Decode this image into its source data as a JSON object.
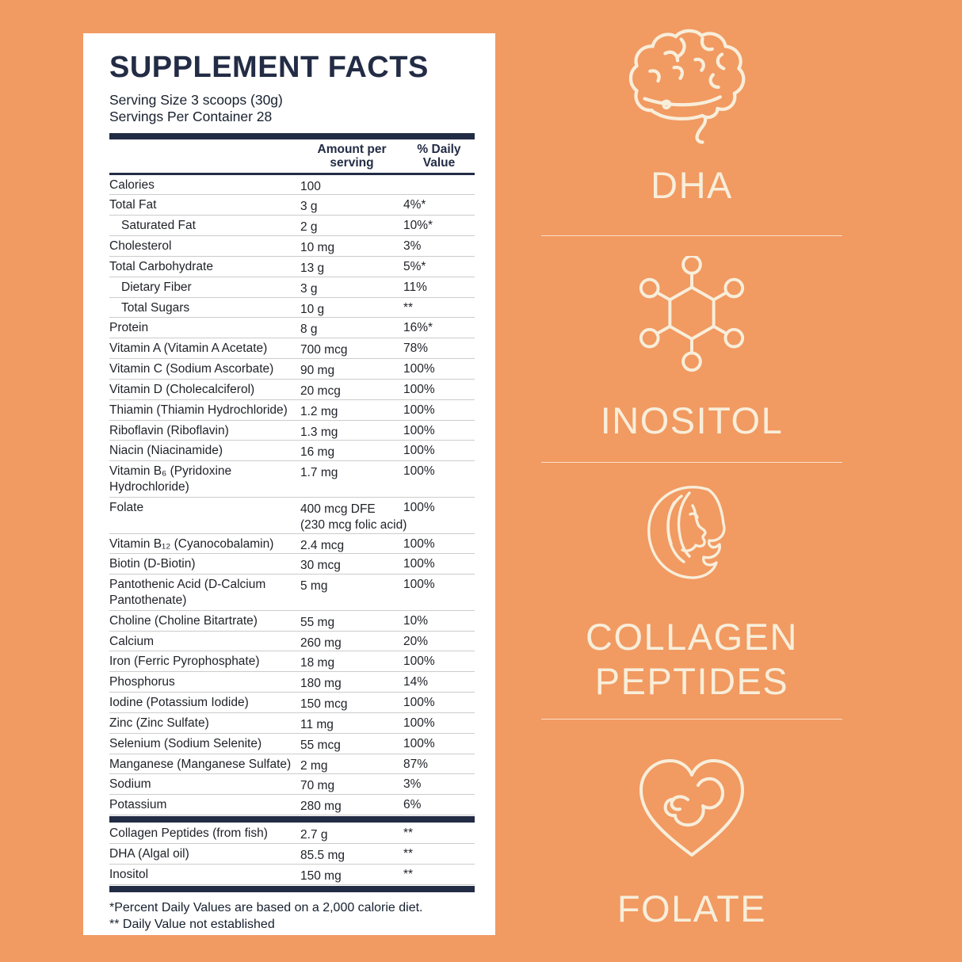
{
  "colors": {
    "background": "#F19A62",
    "panel": "#FFFFFF",
    "navy": "#232C45",
    "text": "#1F2128",
    "cream": "#F8EEDA",
    "separator": "#CCCCCC"
  },
  "panel": {
    "title": "SUPPLEMENT FACTS",
    "serving_size": "Serving Size 3 scoops (30g)",
    "servings_per_container": "Servings Per Container 28",
    "columns": {
      "amount_line1": "Amount per",
      "amount_line2": "serving",
      "dv_line1": "% Daily",
      "dv_line2": "Value"
    },
    "rows": [
      {
        "label": "Calories",
        "amount": "100",
        "dv": ""
      },
      {
        "label": "Total Fat",
        "amount": "3 g",
        "dv": "4%*"
      },
      {
        "label": "Saturated Fat",
        "indent": true,
        "amount": "2 g",
        "dv": "10%*"
      },
      {
        "label": "Cholesterol",
        "amount": "10 mg",
        "dv": "3%"
      },
      {
        "label": "Total Carbohydrate",
        "amount": "13 g",
        "dv": "5%*"
      },
      {
        "label": "Dietary Fiber",
        "indent": true,
        "amount": "3 g",
        "dv": "11%"
      },
      {
        "label": "Total Sugars",
        "indent": true,
        "amount": "10 g",
        "dv": "**"
      },
      {
        "label": "Protein",
        "amount": "8 g",
        "dv": "16%*"
      },
      {
        "label": "Vitamin A (Vitamin A Acetate)",
        "amount": "700 mcg",
        "dv": "78%"
      },
      {
        "label": "Vitamin C (Sodium Ascorbate)",
        "amount": "90 mg",
        "dv": "100%"
      },
      {
        "label": "Vitamin D (Cholecalciferol)",
        "amount": "20 mcg",
        "dv": "100%"
      },
      {
        "label": "Thiamin (Thiamin Hydrochloride)",
        "amount": "1.2 mg",
        "dv": "100%"
      },
      {
        "label": "Riboflavin (Riboflavin)",
        "amount": "1.3 mg",
        "dv": "100%"
      },
      {
        "label": "Niacin (Niacinamide)",
        "amount": "16 mg",
        "dv": "100%"
      },
      {
        "label": "Vitamin B₆ (Pyridoxine",
        "label2": "Hydrochloride)",
        "amount": "1.7 mg",
        "dv": "100%"
      },
      {
        "label": "Folate",
        "amount": "400 mcg DFE",
        "amount2": "(230 mcg folic acid)",
        "dv": "100%"
      },
      {
        "label": "Vitamin B₁₂ (Cyanocobalamin)",
        "amount": "2.4 mcg",
        "dv": "100%"
      },
      {
        "label": "Biotin (D-Biotin)",
        "amount": "30 mcg",
        "dv": "100%"
      },
      {
        "label": "Pantothenic Acid (D-Calcium",
        "label2": "Pantothenate)",
        "amount": "5 mg",
        "dv": "100%"
      },
      {
        "label": "Choline (Choline Bitartrate)",
        "amount": "55 mg",
        "dv": "10%"
      },
      {
        "label": "Calcium",
        "amount": "260 mg",
        "dv": "20%"
      },
      {
        "label": "Iron (Ferric Pyrophosphate)",
        "amount": "18 mg",
        "dv": "100%"
      },
      {
        "label": "Phosphorus",
        "amount": "180 mg",
        "dv": "14%"
      },
      {
        "label": "Iodine (Potassium Iodide)",
        "amount": "150 mcg",
        "dv": "100%"
      },
      {
        "label": "Zinc (Zinc Sulfate)",
        "amount": "11 mg",
        "dv": "100%"
      },
      {
        "label": "Selenium (Sodium Selenite)",
        "amount": "55 mcg",
        "dv": "100%"
      },
      {
        "label": "Manganese (Manganese Sulfate)",
        "amount": "2 mg",
        "dv": "87%"
      },
      {
        "label": "Sodium",
        "amount": "70 mg",
        "dv": "3%"
      },
      {
        "label": "Potassium",
        "amount": "280 mg",
        "dv": "6%"
      }
    ],
    "extra_rows": [
      {
        "label": "Collagen Peptides (from fish)",
        "amount": "2.7 g",
        "dv": "**"
      },
      {
        "label": "DHA (Algal oil)",
        "amount": "85.5 mg",
        "dv": "**"
      },
      {
        "label": "Inositol",
        "amount": "150 mg",
        "dv": "**"
      }
    ],
    "footnotes": [
      "*Percent Daily Values are based on a 2,000 calorie diet.",
      "** Daily Value not established"
    ]
  },
  "highlights": {
    "sections": [
      {
        "label": "DHA",
        "icon": "brain-icon"
      },
      {
        "label": "INOSITOL",
        "icon": "molecule-icon"
      },
      {
        "label": "COLLAGEN PEPTIDES",
        "icon": "woman-face-icon"
      },
      {
        "label": "FOLATE",
        "icon": "heart-fetus-icon"
      }
    ]
  }
}
